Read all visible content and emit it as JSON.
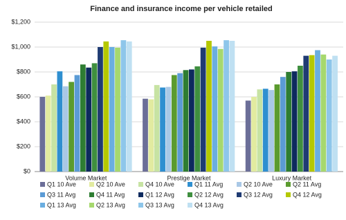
{
  "chart_data": {
    "type": "bar",
    "title": "Finance and insurance income per vehicle retailed",
    "categories": [
      "Volume Market",
      "Prestige Market",
      "Luxury Market"
    ],
    "ylim": [
      0,
      1200
    ],
    "yticks": [
      {
        "value": 0,
        "label": "$0"
      },
      {
        "value": 200,
        "label": "$200"
      },
      {
        "value": 400,
        "label": "$400"
      },
      {
        "value": 600,
        "label": "$600"
      },
      {
        "value": 800,
        "label": "$800"
      },
      {
        "value": 1000,
        "label": "$1,000"
      },
      {
        "value": 1200,
        "label": "$1,200"
      }
    ],
    "grid": true,
    "legend": "bottom",
    "series": [
      {
        "name": "Q1 10 Ave",
        "color": "#6b6e98",
        "values": [
          600,
          585,
          570
        ]
      },
      {
        "name": "Q2 10 Ave",
        "color": "#e2eba0",
        "values": [
          610,
          580,
          600
        ]
      },
      {
        "name": "Q4 10 Ave",
        "color": "#c7e3a3",
        "values": [
          700,
          695,
          660
        ]
      },
      {
        "name": "Q1 11 Avg",
        "color": "#2f8fd0",
        "values": [
          805,
          675,
          665
        ]
      },
      {
        "name": "Q2 10 Ave",
        "color": "#a9c8e6",
        "values": [
          685,
          680,
          655
        ]
      },
      {
        "name": "Q2 11 Avg",
        "color": "#5b9b2e",
        "values": [
          720,
          775,
          700
        ]
      },
      {
        "name": "Q3 11 Avg",
        "color": "#5b9bd5",
        "values": [
          775,
          790,
          760
        ]
      },
      {
        "name": "Q4 11 Avg",
        "color": "#2e7d32",
        "values": [
          860,
          815,
          800
        ]
      },
      {
        "name": "Q1 12 Avg",
        "color": "#0d2a5e",
        "values": [
          835,
          820,
          805
        ]
      },
      {
        "name": "Q2 12 Avg",
        "color": "#3f8f3f",
        "values": [
          870,
          845,
          850
        ]
      },
      {
        "name": "Q3 12 Avg",
        "color": "#1f3b73",
        "values": [
          1000,
          995,
          930
        ]
      },
      {
        "name": "Q4 12 Avg",
        "color": "#b5c800",
        "values": [
          1045,
          1050,
          935
        ]
      },
      {
        "name": "Q1 13 Avg",
        "color": "#6aaee0",
        "values": [
          1000,
          1005,
          975
        ]
      },
      {
        "name": "Q2 13 Avg",
        "color": "#a6d86e",
        "values": [
          995,
          985,
          940
        ]
      },
      {
        "name": "Q3 13 Avg",
        "color": "#8ec6ea",
        "values": [
          1055,
          1055,
          900
        ]
      },
      {
        "name": "Q4 13 Avg",
        "color": "#bfe0f2",
        "values": [
          1045,
          1050,
          930
        ]
      }
    ]
  }
}
